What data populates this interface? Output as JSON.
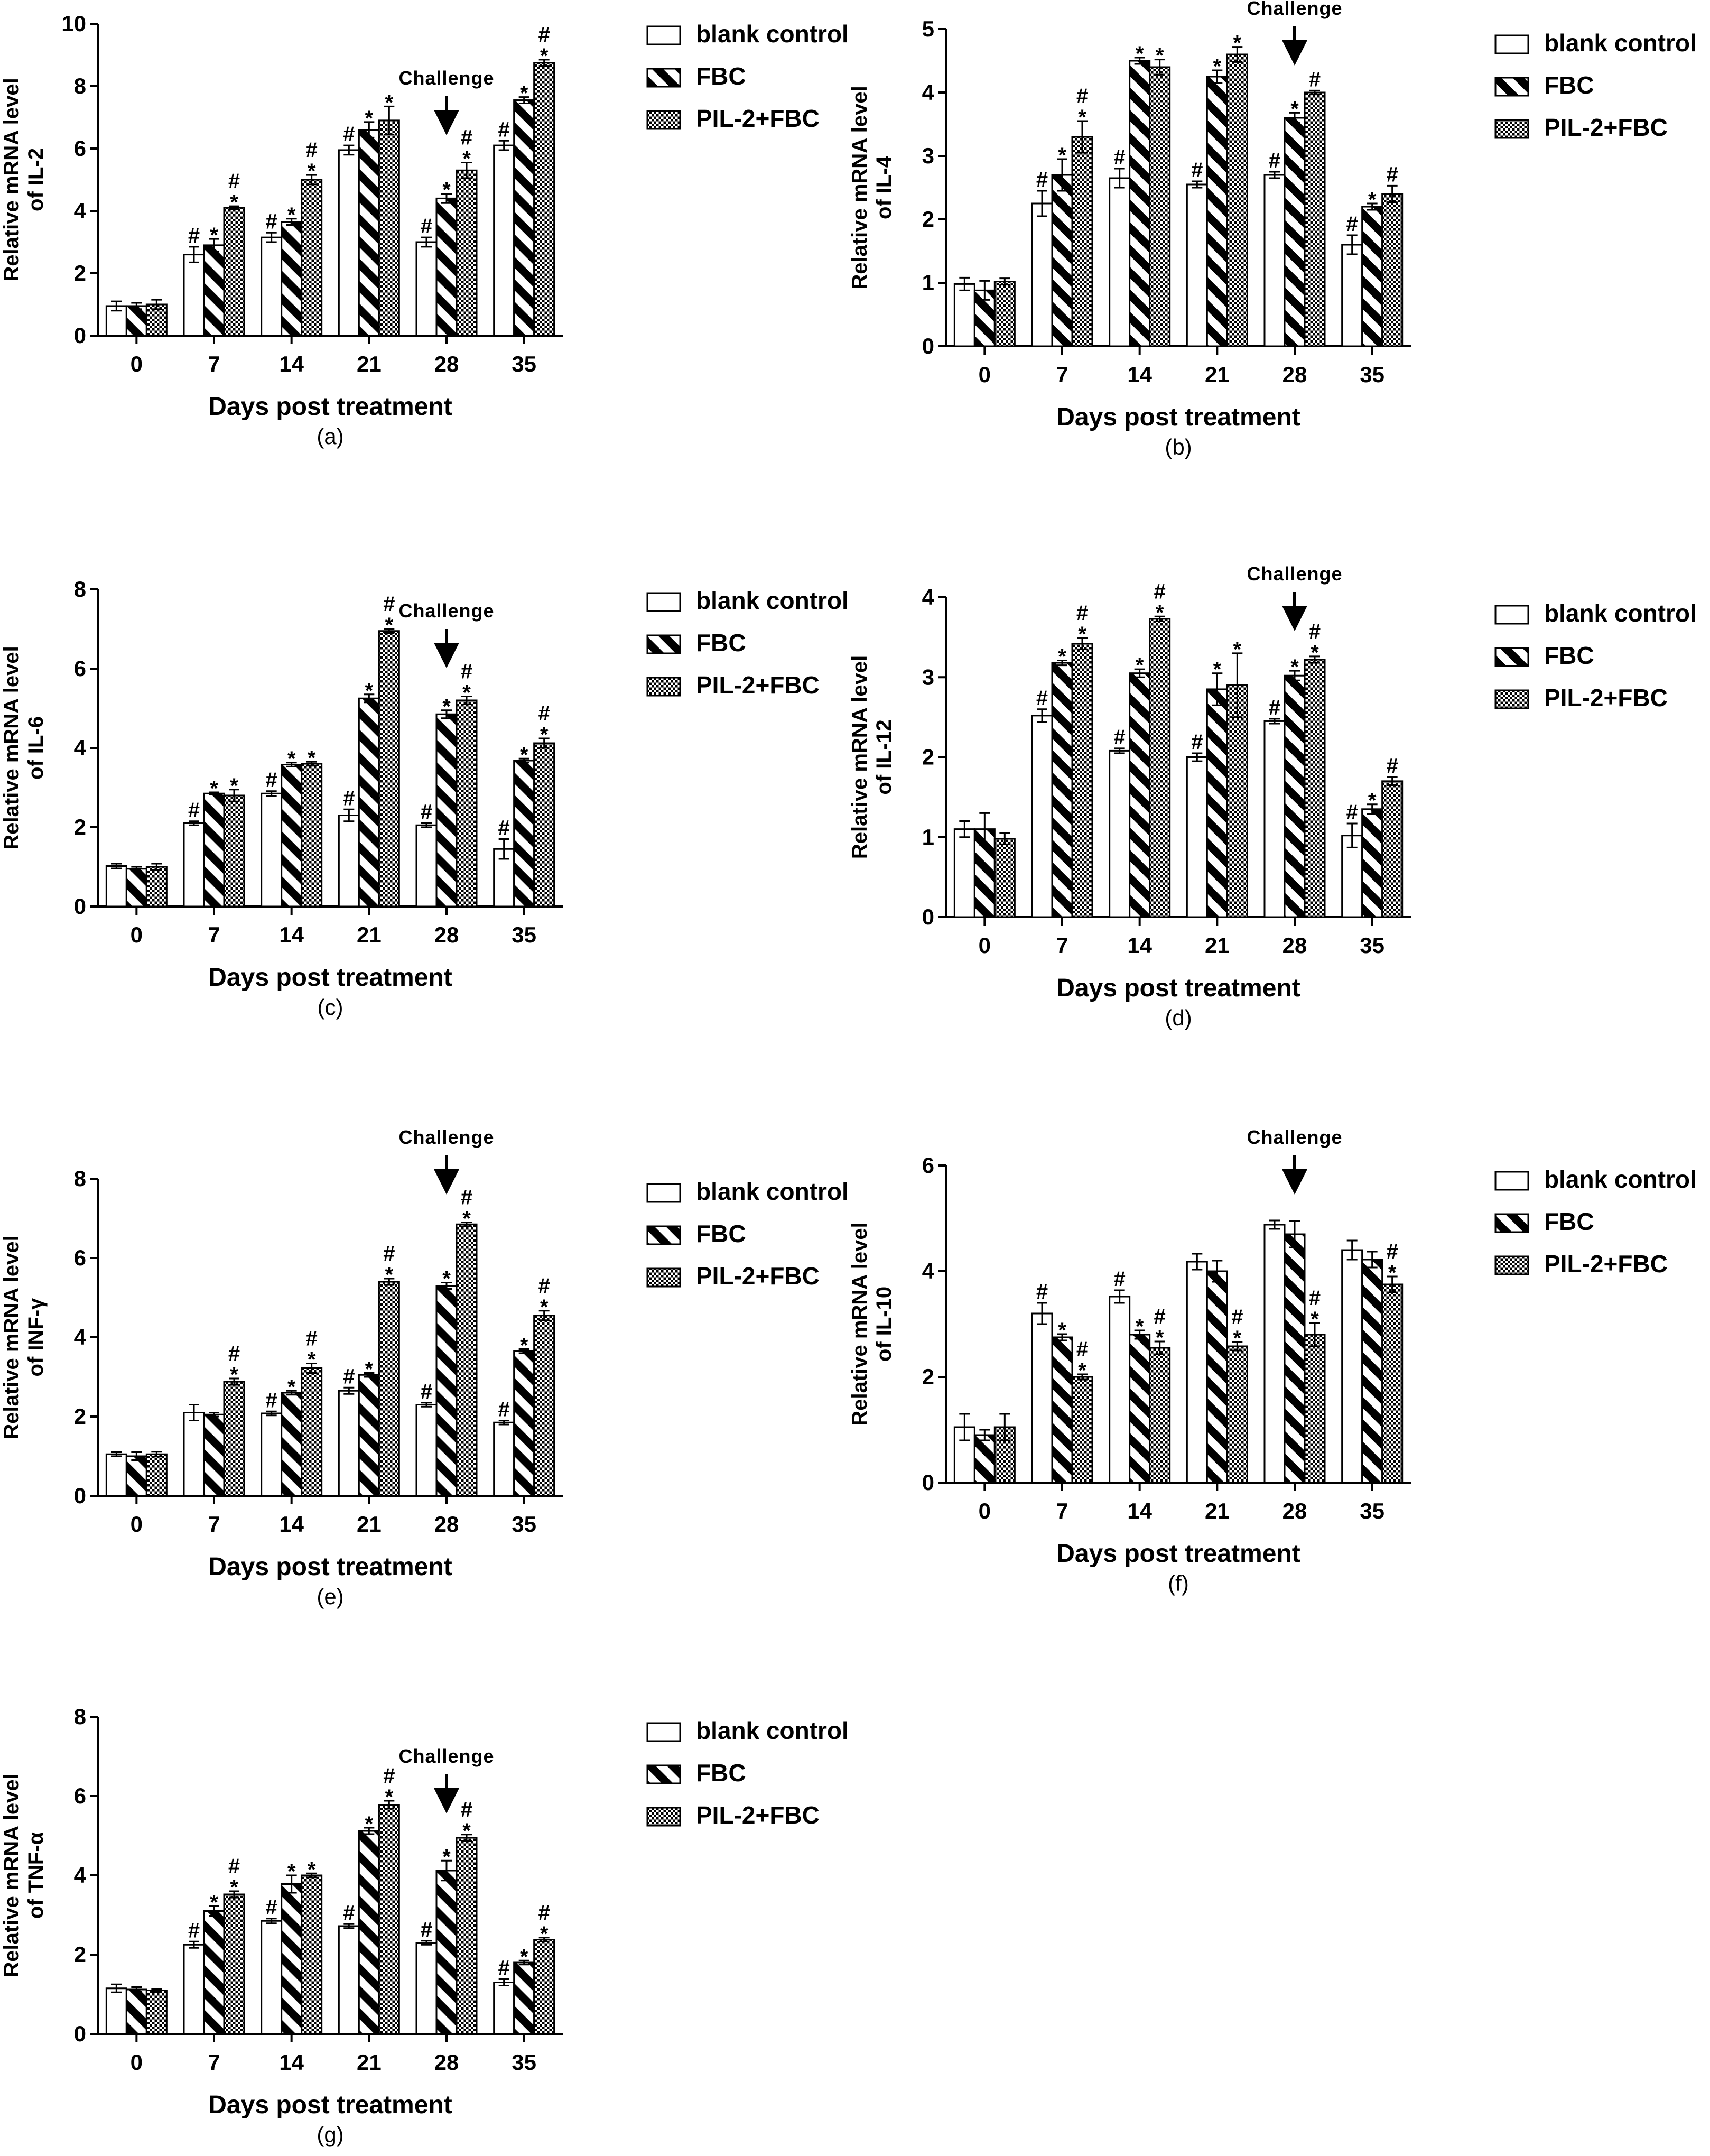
{
  "colors": {
    "ink": "#000000",
    "paper": "#ffffff"
  },
  "legend": [
    "blank control",
    "FBC",
    "PIL-2+FBC"
  ],
  "x_axis_title": "Days post treatment",
  "challenge_label": "Challenge",
  "chart_data": [
    {
      "type": "bar",
      "id": "a",
      "caption": "(a)",
      "title": "",
      "xlabel": "Days post treatment",
      "ylabel_line1": "Relative mRNA level",
      "ylabel_line2": "of IL-2",
      "ylim": [
        0,
        10
      ],
      "yticks": [
        0,
        2,
        4,
        6,
        8,
        10
      ],
      "categories": [
        "0",
        "7",
        "14",
        "21",
        "28",
        "35"
      ],
      "challenge_at": "28",
      "series": [
        {
          "name": "blank control",
          "values": [
            0.95,
            2.6,
            3.15,
            5.95,
            3.0,
            6.1
          ],
          "errors": [
            0.15,
            0.25,
            0.15,
            0.15,
            0.15,
            0.15
          ],
          "marks": [
            "",
            "#",
            "#",
            "#",
            "#",
            "#"
          ]
        },
        {
          "name": "FBC",
          "values": [
            0.95,
            2.9,
            3.65,
            6.6,
            4.4,
            7.55
          ],
          "errors": [
            0.1,
            0.2,
            0.1,
            0.25,
            0.15,
            0.1
          ],
          "marks": [
            "",
            "*",
            "*",
            "*",
            "*",
            "*"
          ]
        },
        {
          "name": "PIL-2+FBC",
          "values": [
            1.0,
            4.1,
            5.0,
            6.9,
            5.3,
            8.75
          ],
          "errors": [
            0.15,
            0.05,
            0.15,
            0.45,
            0.25,
            0.1
          ],
          "marks": [
            "",
            "*#",
            "*#",
            "*",
            "*#",
            "*#"
          ]
        }
      ]
    },
    {
      "type": "bar",
      "id": "b",
      "caption": "(b)",
      "title": "",
      "xlabel": "Days post treatment",
      "ylabel_line1": "Relative mRNA level",
      "ylabel_line2": "of IL-4",
      "ylim": [
        0,
        5
      ],
      "yticks": [
        0,
        1,
        2,
        3,
        4,
        5
      ],
      "categories": [
        "0",
        "7",
        "14",
        "21",
        "28",
        "35"
      ],
      "challenge_at": "28",
      "series": [
        {
          "name": "blank control",
          "values": [
            0.98,
            2.25,
            2.65,
            2.55,
            2.7,
            1.6
          ],
          "errors": [
            0.1,
            0.2,
            0.15,
            0.05,
            0.05,
            0.15
          ],
          "marks": [
            "",
            "#",
            "#",
            "#",
            "#",
            "#"
          ]
        },
        {
          "name": "FBC",
          "values": [
            0.88,
            2.7,
            4.5,
            4.25,
            3.6,
            2.2
          ],
          "errors": [
            0.15,
            0.25,
            0.05,
            0.1,
            0.08,
            0.05
          ],
          "marks": [
            "",
            "*",
            "*",
            "*",
            "*",
            "*"
          ]
        },
        {
          "name": "PIL-2+FBC",
          "values": [
            1.02,
            3.3,
            4.4,
            4.6,
            4.0,
            2.4
          ],
          "errors": [
            0.05,
            0.25,
            0.12,
            0.12,
            0.03,
            0.13
          ],
          "marks": [
            "",
            "*#",
            "*",
            "*",
            "#",
            "#"
          ]
        }
      ]
    },
    {
      "type": "bar",
      "id": "c",
      "caption": "(c)",
      "title": "",
      "xlabel": "Days post treatment",
      "ylabel_line1": "Relative mRNA level",
      "ylabel_line2": "of IL-6",
      "ylim": [
        0,
        8
      ],
      "yticks": [
        0,
        2,
        4,
        6,
        8
      ],
      "categories": [
        "0",
        "7",
        "14",
        "21",
        "28",
        "35"
      ],
      "challenge_at": "28",
      "series": [
        {
          "name": "blank control",
          "values": [
            1.02,
            2.1,
            2.85,
            2.3,
            2.05,
            1.45
          ],
          "errors": [
            0.06,
            0.05,
            0.06,
            0.15,
            0.05,
            0.25
          ],
          "marks": [
            "",
            "#",
            "#",
            "#",
            "#",
            "#"
          ]
        },
        {
          "name": "FBC",
          "values": [
            0.95,
            2.85,
            3.58,
            5.25,
            4.85,
            3.68
          ],
          "errors": [
            0.05,
            0.03,
            0.05,
            0.1,
            0.1,
            0.05
          ],
          "marks": [
            "",
            "*",
            "*",
            "*",
            "*",
            "*"
          ]
        },
        {
          "name": "PIL-2+FBC",
          "values": [
            1.0,
            2.8,
            3.6,
            6.95,
            5.2,
            4.12
          ],
          "errors": [
            0.08,
            0.15,
            0.05,
            0.05,
            0.1,
            0.12
          ],
          "marks": [
            "",
            "*",
            "*",
            "*#",
            "*#",
            "*#"
          ]
        }
      ]
    },
    {
      "type": "bar",
      "id": "d",
      "caption": "(d)",
      "title": "",
      "xlabel": "Days post treatment",
      "ylabel_line1": "Relative mRNA level",
      "ylabel_line2": "of IL-12",
      "ylim": [
        0,
        4
      ],
      "yticks": [
        0,
        1,
        2,
        3,
        4
      ],
      "categories": [
        "0",
        "7",
        "14",
        "21",
        "28",
        "35"
      ],
      "challenge_at": "28",
      "series": [
        {
          "name": "blank control",
          "values": [
            1.1,
            2.52,
            2.08,
            2.0,
            2.45,
            1.02
          ],
          "errors": [
            0.1,
            0.08,
            0.03,
            0.05,
            0.03,
            0.15
          ],
          "marks": [
            "",
            "#",
            "#",
            "#",
            "#",
            "#"
          ]
        },
        {
          "name": "FBC",
          "values": [
            1.1,
            3.18,
            3.05,
            2.85,
            3.02,
            1.35
          ],
          "errors": [
            0.2,
            0.03,
            0.05,
            0.2,
            0.06,
            0.06
          ],
          "marks": [
            "",
            "*",
            "*",
            "*",
            "*",
            "*"
          ]
        },
        {
          "name": "PIL-2+FBC",
          "values": [
            0.98,
            3.42,
            3.73,
            2.9,
            3.22,
            1.7
          ],
          "errors": [
            0.07,
            0.07,
            0.03,
            0.4,
            0.04,
            0.05
          ],
          "marks": [
            "",
            "*#",
            "*#",
            "*",
            "*#",
            "#"
          ]
        }
      ]
    },
    {
      "type": "bar",
      "id": "e",
      "caption": "(e)",
      "title": "",
      "xlabel": "Days post treatment",
      "ylabel_line1": "Relative mRNA level",
      "ylabel_line2": "of INF-γ",
      "ylim": [
        0,
        8
      ],
      "yticks": [
        0,
        2,
        4,
        6,
        8
      ],
      "categories": [
        "0",
        "7",
        "14",
        "21",
        "28",
        "35"
      ],
      "challenge_at": "28",
      "series": [
        {
          "name": "blank control",
          "values": [
            1.05,
            2.1,
            2.08,
            2.65,
            2.3,
            1.85
          ],
          "errors": [
            0.05,
            0.2,
            0.05,
            0.08,
            0.05,
            0.05
          ],
          "marks": [
            "",
            "",
            "#",
            "#",
            "#",
            "#"
          ]
        },
        {
          "name": "FBC",
          "values": [
            1.0,
            2.05,
            2.6,
            3.05,
            5.3,
            3.65
          ],
          "errors": [
            0.1,
            0.05,
            0.05,
            0.05,
            0.08,
            0.05
          ],
          "marks": [
            "",
            "",
            "*",
            "*",
            "*",
            "*"
          ]
        },
        {
          "name": "PIL-2+FBC",
          "values": [
            1.05,
            2.88,
            3.22,
            5.4,
            6.85,
            4.55
          ],
          "errors": [
            0.06,
            0.08,
            0.12,
            0.08,
            0.05,
            0.12
          ],
          "marks": [
            "",
            "*#",
            "*#",
            "*#",
            "*#",
            "*#"
          ]
        }
      ]
    },
    {
      "type": "bar",
      "id": "f",
      "caption": "(f)",
      "title": "",
      "xlabel": "Days post treatment",
      "ylabel_line1": "Relative mRNA level",
      "ylabel_line2": "of IL-10",
      "ylim": [
        0,
        6
      ],
      "yticks": [
        0,
        2,
        4,
        6
      ],
      "categories": [
        "0",
        "7",
        "14",
        "21",
        "28",
        "35"
      ],
      "challenge_at": "28",
      "series": [
        {
          "name": "blank control",
          "values": [
            1.05,
            3.2,
            3.52,
            4.18,
            4.88,
            4.4
          ],
          "errors": [
            0.25,
            0.2,
            0.12,
            0.15,
            0.08,
            0.18
          ],
          "marks": [
            "",
            "#",
            "#",
            "",
            "",
            ""
          ]
        },
        {
          "name": "FBC",
          "values": [
            0.9,
            2.75,
            2.8,
            4.0,
            4.7,
            4.22
          ],
          "errors": [
            0.1,
            0.06,
            0.08,
            0.2,
            0.25,
            0.15
          ],
          "marks": [
            "",
            "*",
            "*",
            "",
            "",
            ""
          ]
        },
        {
          "name": "PIL-2+FBC",
          "values": [
            1.05,
            2.0,
            2.55,
            2.58,
            2.8,
            3.75
          ],
          "errors": [
            0.25,
            0.05,
            0.12,
            0.08,
            0.22,
            0.15
          ],
          "marks": [
            "",
            "*#",
            "*#",
            "*#",
            "*#",
            "*#"
          ]
        }
      ]
    },
    {
      "type": "bar",
      "id": "g",
      "caption": "(g)",
      "title": "",
      "xlabel": "Days post treatment",
      "ylabel_line1": "Relative mRNA level",
      "ylabel_line2": "of TNF-α",
      "ylim": [
        0,
        8
      ],
      "yticks": [
        0,
        2,
        4,
        6,
        8
      ],
      "categories": [
        "0",
        "7",
        "14",
        "21",
        "28",
        "35"
      ],
      "challenge_at": "28",
      "series": [
        {
          "name": "blank control",
          "values": [
            1.15,
            2.25,
            2.85,
            2.72,
            2.3,
            1.3
          ],
          "errors": [
            0.1,
            0.08,
            0.06,
            0.05,
            0.05,
            0.08
          ],
          "marks": [
            "",
            "#",
            "#",
            "#",
            "#",
            "#"
          ]
        },
        {
          "name": "FBC",
          "values": [
            1.12,
            3.1,
            3.78,
            5.12,
            4.12,
            1.8
          ],
          "errors": [
            0.06,
            0.12,
            0.22,
            0.08,
            0.25,
            0.05
          ],
          "marks": [
            "",
            "*",
            "*",
            "*",
            "*",
            "*"
          ]
        },
        {
          "name": "PIL-2+FBC",
          "values": [
            1.1,
            3.52,
            4.0,
            5.78,
            4.95,
            2.38
          ],
          "errors": [
            0.04,
            0.08,
            0.05,
            0.1,
            0.08,
            0.05
          ],
          "marks": [
            "",
            "*#",
            "*",
            "*#",
            "*#",
            "*#"
          ]
        }
      ]
    }
  ]
}
